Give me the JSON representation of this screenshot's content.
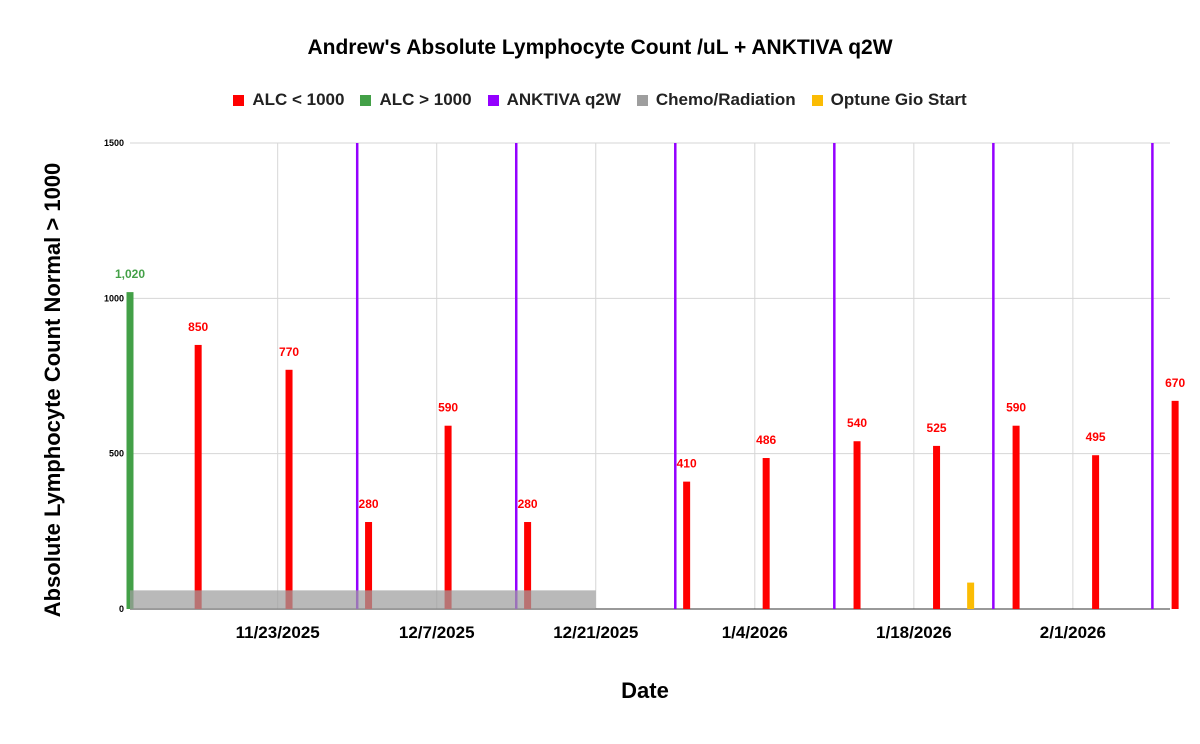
{
  "chart_data": {
    "type": "bar",
    "title": "Andrew's Absolute Lymphocyte Count /uL + ANKTIVA q2W",
    "xlabel": "Date",
    "ylabel": "Absolute Lymphocyte Count Normal > 1000",
    "ylim": [
      0,
      1500
    ],
    "yticks": [
      0,
      500,
      1000,
      1500
    ],
    "x_tick_labels": [
      "11/23/2025",
      "12/7/2025",
      "12/21/2025",
      "1/4/2026",
      "1/18/2026",
      "2/1/2026"
    ],
    "legend": [
      {
        "label": "ALC < 1000",
        "color": "#ff0000"
      },
      {
        "label": "ALC > 1000",
        "color": "#43a047"
      },
      {
        "label": "ANKTIVA q2W",
        "color": "#9400ff"
      },
      {
        "label": "Chemo/Radiation",
        "color": "#9e9e9e"
      },
      {
        "label": "Optune Gio Start",
        "color": "#fbbc04"
      }
    ],
    "alc_bars": [
      {
        "date": "2025-11-10",
        "value": 1020,
        "label": "1,020",
        "series": "ALC > 1000"
      },
      {
        "date": "2025-11-16",
        "value": 850,
        "label": "850",
        "series": "ALC < 1000"
      },
      {
        "date": "2025-11-24",
        "value": 770,
        "label": "770",
        "series": "ALC < 1000"
      },
      {
        "date": "2025-12-01",
        "value": 280,
        "label": "280",
        "series": "ALC < 1000"
      },
      {
        "date": "2025-12-08",
        "value": 590,
        "label": "590",
        "series": "ALC < 1000"
      },
      {
        "date": "2025-12-15",
        "value": 280,
        "label": "280",
        "series": "ALC < 1000"
      },
      {
        "date": "2025-12-29",
        "value": 410,
        "label": "410",
        "series": "ALC < 1000"
      },
      {
        "date": "2026-01-05",
        "value": 486,
        "label": "486",
        "series": "ALC < 1000"
      },
      {
        "date": "2026-01-13",
        "value": 540,
        "label": "540",
        "series": "ALC < 1000"
      },
      {
        "date": "2026-01-20",
        "value": 525,
        "label": "525",
        "series": "ALC < 1000"
      },
      {
        "date": "2026-01-27",
        "value": 590,
        "label": "590",
        "series": "ALC < 1000"
      },
      {
        "date": "2026-02-03",
        "value": 495,
        "label": "495",
        "series": "ALC < 1000"
      },
      {
        "date": "2026-02-10",
        "value": 670,
        "label": "670",
        "series": "ALC < 1000"
      }
    ],
    "anktiva_dates": [
      "2025-11-30",
      "2025-12-14",
      "2025-12-28",
      "2026-01-11",
      "2026-01-25",
      "2026-02-08"
    ],
    "chemo_radiation": {
      "start": "2025-11-10",
      "end": "2025-12-21",
      "value": 60
    },
    "optune_gio_start": {
      "date": "2026-01-23",
      "value": 85
    }
  }
}
